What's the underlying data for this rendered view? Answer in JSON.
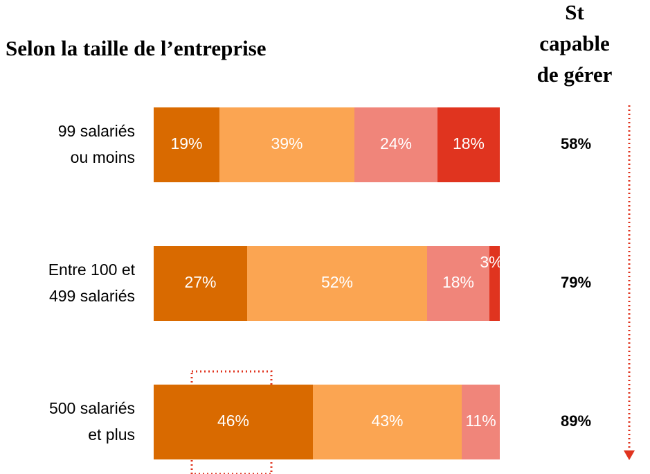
{
  "chart_data": {
    "type": "bar",
    "orientation": "horizontal",
    "stacked": true,
    "title": "Selon la taille de l’entreprise",
    "categories": [
      [
        "99 salariés",
        "ou moins"
      ],
      [
        "Entre 100 et",
        "499 salariés"
      ],
      [
        "500 salariés",
        "et plus"
      ]
    ],
    "series": [
      {
        "color": "#d96a00",
        "values": [
          19,
          27,
          46
        ],
        "value_labels": [
          "19%",
          "27%",
          "46%"
        ]
      },
      {
        "color": "#fba552",
        "values": [
          39,
          52,
          43
        ],
        "value_labels": [
          "39%",
          "52%",
          "43%"
        ]
      },
      {
        "color": "#f0857a",
        "values": [
          24,
          18,
          11
        ],
        "value_labels": [
          "24%",
          "18%",
          "11%"
        ]
      },
      {
        "color": "#e0341f",
        "values": [
          18,
          3,
          null
        ],
        "value_labels": [
          "18%",
          "3%",
          null
        ]
      }
    ],
    "totals": {
      "title": [
        "St",
        "capable",
        "de gérer"
      ],
      "values": [
        58,
        79,
        89
      ],
      "value_labels": [
        "58%",
        "79%",
        "89%"
      ]
    }
  }
}
